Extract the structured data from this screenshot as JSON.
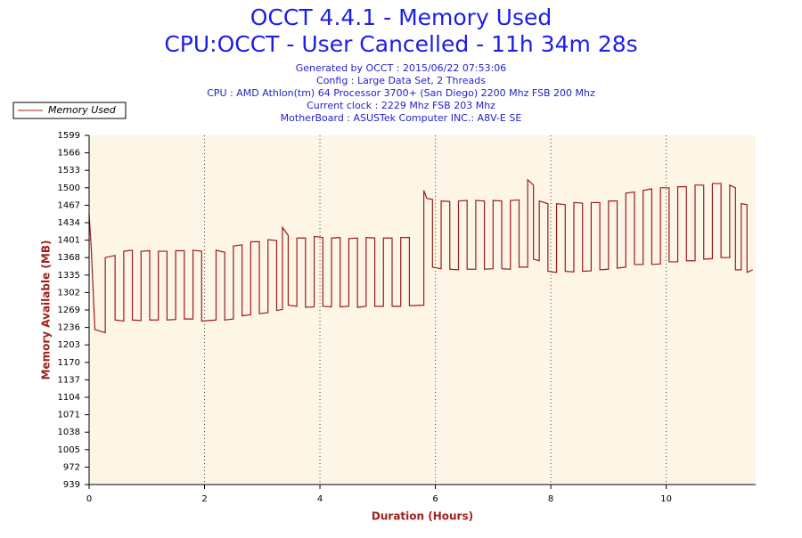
{
  "chart_data": {
    "type": "line",
    "title": "OCCT 4.4.1 - Memory Used",
    "subtitle": "CPU:OCCT - User Cancelled - 11h 34m 28s",
    "info": [
      "Generated by OCCT : 2015/06/22 07:53:06",
      "Config : Large Data Set, 2 Threads",
      "CPU : AMD Athlon(tm) 64 Processor 3700+ (San Diego) 2200 Mhz FSB 200 Mhz",
      "Current clock : 2229 Mhz FSB 203 Mhz",
      "MotherBoard : ASUSTek Computer INC.: A8V-E SE"
    ],
    "x_label": "Duration (Hours)",
    "y_label": "Memory Available (MB)",
    "xlim": [
      0,
      11.55
    ],
    "xticks": [
      0,
      2,
      4,
      6,
      8,
      10
    ],
    "ylim": [
      939,
      1599
    ],
    "yticks": [
      939,
      972,
      1005,
      1038,
      1071,
      1104,
      1137,
      1170,
      1203,
      1236,
      1269,
      1302,
      1335,
      1368,
      1401,
      1434,
      1467,
      1500,
      1533,
      1566,
      1599
    ],
    "grid": true,
    "legend": "top-left",
    "x": [
      0,
      0.04,
      0.1,
      0.28,
      0.28,
      0.45,
      0.45,
      0.6,
      0.6,
      0.75,
      0.75,
      0.9,
      0.9,
      1.05,
      1.05,
      1.2,
      1.2,
      1.35,
      1.35,
      1.5,
      1.5,
      1.65,
      1.65,
      1.8,
      1.8,
      1.95,
      1.95,
      2.2,
      2.2,
      2.35,
      2.35,
      2.5,
      2.5,
      2.65,
      2.65,
      2.8,
      2.8,
      2.95,
      2.95,
      3.1,
      3.1,
      3.25,
      3.25,
      3.35,
      3.35,
      3.45,
      3.45,
      3.6,
      3.6,
      3.75,
      3.75,
      3.9,
      3.9,
      4.05,
      4.05,
      4.2,
      4.2,
      4.35,
      4.35,
      4.5,
      4.5,
      4.65,
      4.65,
      4.8,
      4.8,
      4.95,
      4.95,
      5.1,
      5.1,
      5.25,
      5.25,
      5.4,
      5.4,
      5.55,
      5.55,
      5.8,
      5.8,
      5.85,
      5.95,
      5.95,
      6.1,
      6.1,
      6.25,
      6.25,
      6.4,
      6.4,
      6.55,
      6.55,
      6.7,
      6.7,
      6.85,
      6.85,
      7.0,
      7.0,
      7.15,
      7.15,
      7.3,
      7.3,
      7.45,
      7.45,
      7.6,
      7.6,
      7.7,
      7.7,
      7.8,
      7.8,
      7.95,
      7.95,
      8.1,
      8.1,
      8.25,
      8.25,
      8.4,
      8.4,
      8.55,
      8.55,
      8.7,
      8.7,
      8.85,
      8.85,
      9.0,
      9.0,
      9.15,
      9.15,
      9.3,
      9.3,
      9.45,
      9.45,
      9.6,
      9.6,
      9.75,
      9.75,
      9.9,
      9.9,
      10.05,
      10.05,
      10.2,
      10.2,
      10.35,
      10.35,
      10.5,
      10.5,
      10.65,
      10.65,
      10.8,
      10.8,
      10.95,
      10.95,
      11.1,
      11.1,
      11.2,
      11.2,
      11.3,
      11.3,
      11.4,
      11.4,
      11.5
    ],
    "series": [
      {
        "name": "Memory Used",
        "color": "#9b1c1c",
        "values": [
          1450,
          1380,
          1232,
          1226,
          1368,
          1372,
          1250,
          1248,
          1380,
          1382,
          1250,
          1249,
          1380,
          1381,
          1250,
          1250,
          1380,
          1380,
          1250,
          1251,
          1381,
          1381,
          1252,
          1252,
          1382,
          1380,
          1248,
          1250,
          1382,
          1378,
          1250,
          1252,
          1390,
          1392,
          1258,
          1260,
          1398,
          1398,
          1262,
          1264,
          1402,
          1400,
          1268,
          1270,
          1425,
          1410,
          1278,
          1276,
          1405,
          1405,
          1274,
          1275,
          1408,
          1406,
          1276,
          1275,
          1405,
          1406,
          1275,
          1276,
          1404,
          1405,
          1274,
          1276,
          1406,
          1405,
          1276,
          1276,
          1405,
          1405,
          1276,
          1276,
          1406,
          1406,
          1277,
          1278,
          1495,
          1480,
          1478,
          1350,
          1347,
          1475,
          1474,
          1346,
          1345,
          1475,
          1476,
          1346,
          1346,
          1476,
          1475,
          1346,
          1347,
          1476,
          1475,
          1347,
          1346,
          1476,
          1477,
          1350,
          1350,
          1515,
          1505,
          1365,
          1362,
          1475,
          1470,
          1342,
          1340,
          1470,
          1468,
          1342,
          1341,
          1472,
          1471,
          1342,
          1343,
          1472,
          1472,
          1345,
          1346,
          1475,
          1475,
          1348,
          1350,
          1490,
          1492,
          1355,
          1355,
          1495,
          1498,
          1355,
          1356,
          1500,
          1500,
          1360,
          1360,
          1502,
          1502,
          1362,
          1362,
          1505,
          1505,
          1365,
          1366,
          1508,
          1508,
          1368,
          1368,
          1505,
          1500,
          1345,
          1345,
          1470,
          1468,
          1340,
          1345
        ]
      }
    ]
  }
}
